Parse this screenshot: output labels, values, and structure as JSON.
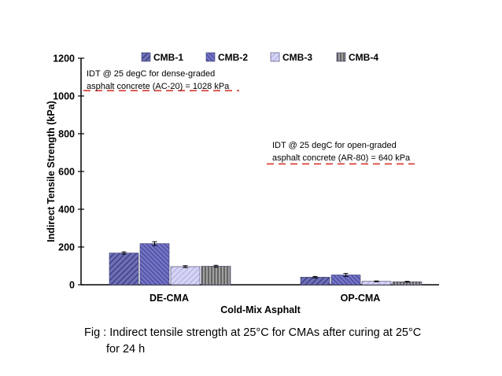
{
  "chart_data": {
    "type": "bar",
    "categories": [
      "DE-CMA",
      "OP-CMA"
    ],
    "series": [
      {
        "name": "CMB-1",
        "values": [
          168,
          40
        ],
        "errors": [
          6,
          4
        ],
        "fill": "#6d6fb3",
        "pattern": "diag"
      },
      {
        "name": "CMB-2",
        "values": [
          218,
          52
        ],
        "errors": [
          10,
          8
        ],
        "fill": "#6364b4",
        "pattern": "diag-dense"
      },
      {
        "name": "CMB-3",
        "values": [
          96,
          18
        ],
        "errors": [
          5,
          2
        ],
        "fill": "#c8c6ee",
        "pattern": "diag-light"
      },
      {
        "name": "CMB-4",
        "values": [
          98,
          16
        ],
        "errors": [
          5,
          2
        ],
        "fill": "#8d8d8d",
        "pattern": "vert"
      }
    ],
    "xlabel": "Cold-Mix Asphalt",
    "ylabel": "Indirect Tensile Strength (kPa)",
    "ylim": [
      0,
      1200
    ],
    "yticks": [
      0,
      200,
      400,
      600,
      800,
      1000,
      1200
    ],
    "grid": false,
    "legend_position": "top",
    "reference_lines": [
      {
        "value": 1028,
        "color": "#d9403a",
        "style": "dashed",
        "label_lines": [
          "IDT @ 25 degC for dense-graded",
          "asphalt concrete (AC-20) = 1028 kPa"
        ]
      },
      {
        "value": 640,
        "color": "#d9403a",
        "style": "dashed",
        "label_lines": [
          "IDT @ 25 degC for open-graded",
          "asphalt concrete (AR-80) = 640 kPa"
        ]
      }
    ]
  },
  "caption": {
    "line1": "Fig : Indirect tensile strength at 25°C for CMAs after curing at 25°C",
    "line2": "for 24 h"
  }
}
